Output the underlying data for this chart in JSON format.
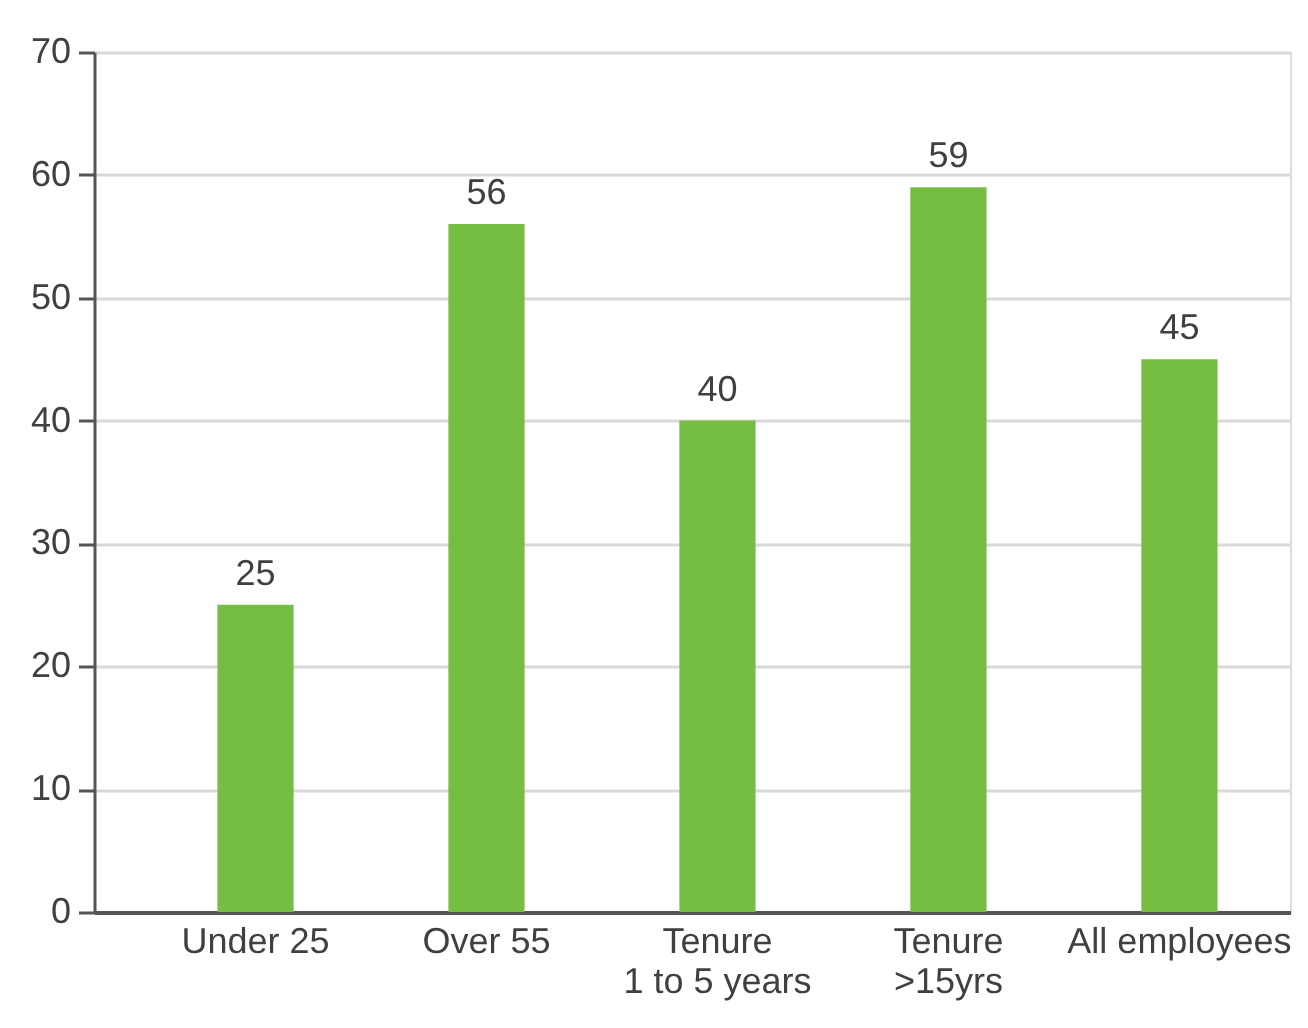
{
  "chart_data": {
    "type": "bar",
    "categories": [
      "Under 25",
      "Over 55",
      "Tenure\n1 to 5 years",
      "Tenure\n>15yrs",
      "All employees"
    ],
    "values": [
      25,
      56,
      40,
      59,
      45
    ],
    "color": "#75be43",
    "ylim": [
      0,
      70
    ],
    "yticks": [
      0,
      10,
      20,
      30,
      40,
      50,
      60,
      70
    ],
    "grid": "y",
    "data_labels": true
  }
}
